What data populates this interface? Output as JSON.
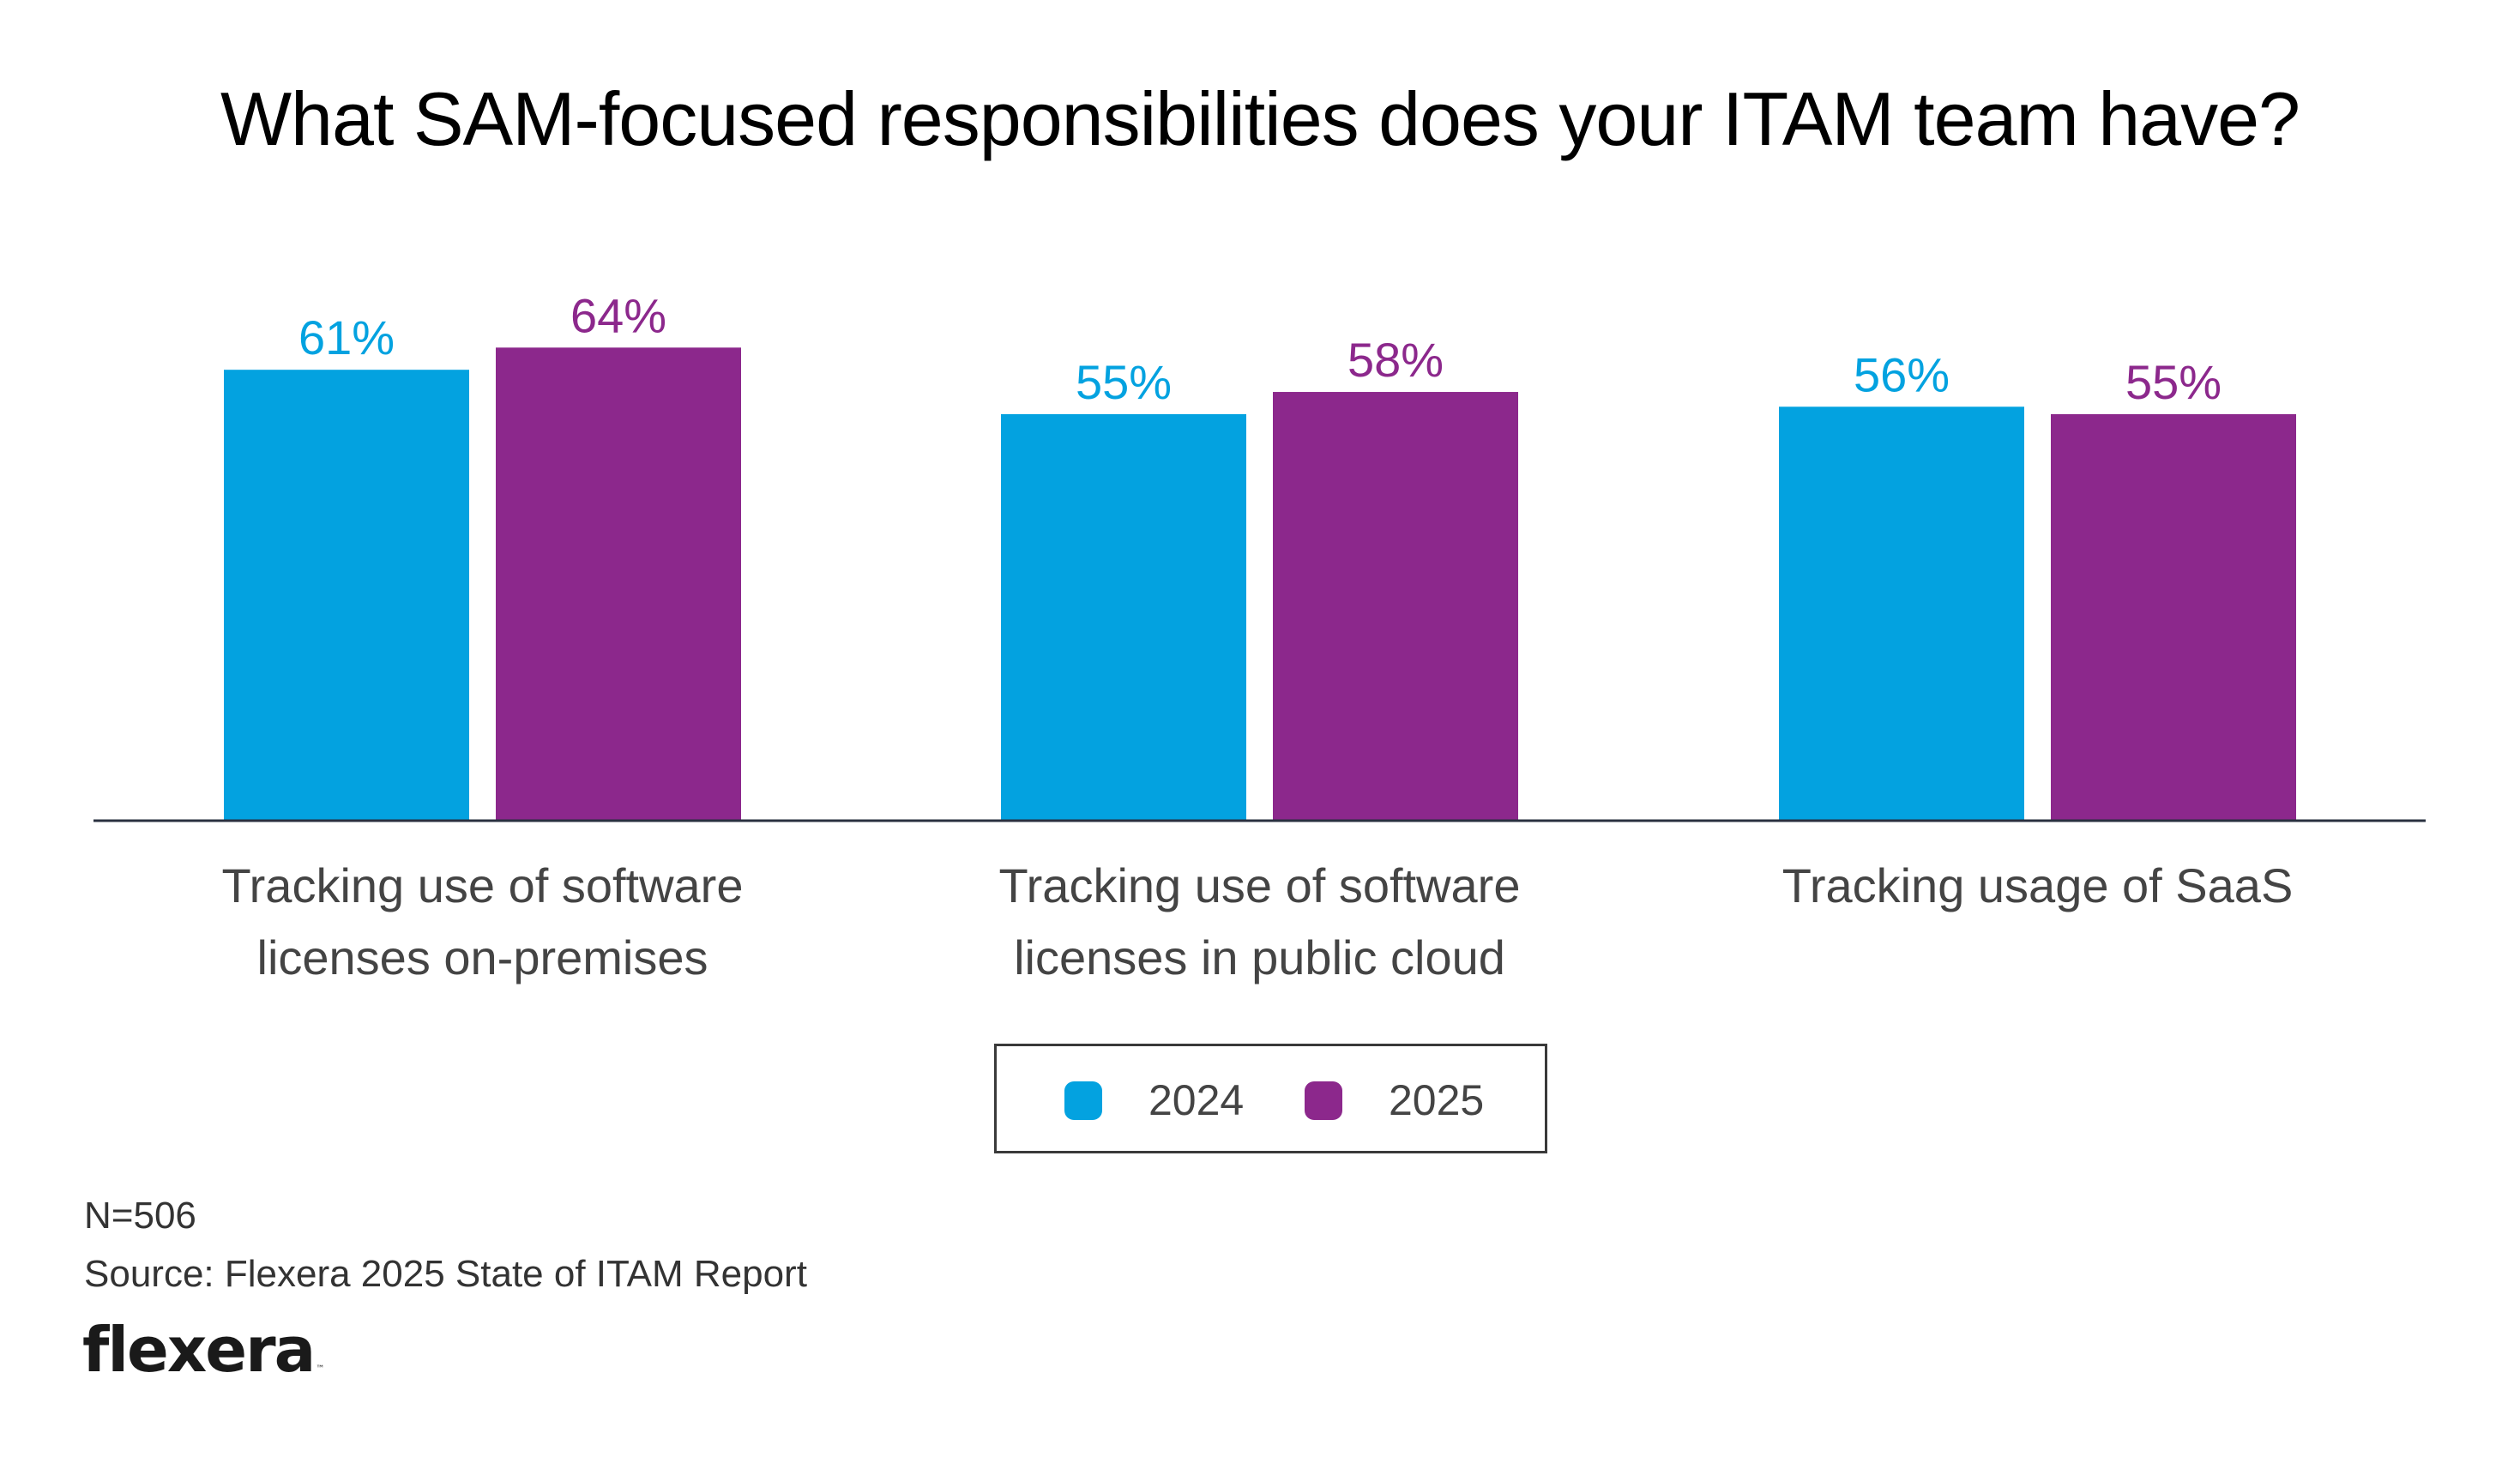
{
  "title": "What SAM-focused responsibilities does your ITAM team have?",
  "colors": {
    "series_2024": "#03a2e0",
    "series_2025": "#8c288c",
    "axis": "#2a3040",
    "text": "#444444"
  },
  "legend": {
    "items": [
      {
        "label": "2024",
        "color": "#03a2e0"
      },
      {
        "label": "2025",
        "color": "#8c288c"
      }
    ]
  },
  "footer": {
    "sample_size": "N=506",
    "source": "Source: Flexera 2025 State of ITAM Report",
    "logo_text": "flexera",
    "logo_mark": "™"
  },
  "chart_data": {
    "type": "bar",
    "title": "What SAM-focused responsibilities does your ITAM team have?",
    "xlabel": "",
    "ylabel": "",
    "ylim": [
      0,
      111
    ],
    "grid": false,
    "legend_position": "bottom-center",
    "value_suffix": "%",
    "categories": [
      "Tracking use of software\nlicenses on-premises",
      "Tracking use of software\nlicenses in public cloud",
      "Tracking usage of SaaS"
    ],
    "series": [
      {
        "name": "2024",
        "color": "#03a2e0",
        "values": [
          61,
          55,
          56
        ],
        "labels": [
          "61%",
          "55%",
          "56%"
        ]
      },
      {
        "name": "2025",
        "color": "#8c288c",
        "values": [
          64,
          58,
          55
        ],
        "labels": [
          "64%",
          "58%",
          "55%"
        ]
      }
    ]
  }
}
